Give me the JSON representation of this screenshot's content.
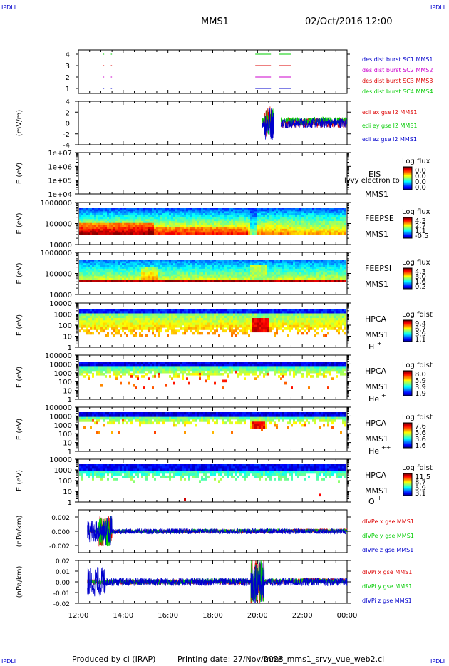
{
  "corner_tag": "IPDLI",
  "header": {
    "spacecraft": "MMS1",
    "date": "02/Oct/2016 12:00"
  },
  "footer": {
    "produced_by": "Produced by cl (IRAP)",
    "printing_date": "Printing date: 27/Nov/2023",
    "script_name": "mms_mms1_srvy_vue_web2.cl"
  },
  "time_axis": {
    "start": "12:00",
    "end": "00:00",
    "ticks": [
      "12:00",
      "14:00",
      "16:00",
      "18:00",
      "20:00",
      "22:00",
      "00:00"
    ]
  },
  "chart_data": [
    {
      "id": "burst",
      "type": "scatter",
      "yticks": [
        "4",
        "3",
        "2",
        "1"
      ],
      "ylim": [
        0.5,
        4.5
      ],
      "series": [
        {
          "name": "des dist burst SC1 MMS1",
          "color": "#0000cc"
        },
        {
          "name": "des dist burst SC2 MMS2",
          "color": "#cc00cc"
        },
        {
          "name": "des dist burst SC3 MMS3",
          "color": "#dd0000"
        },
        {
          "name": "des dist burst SC4 MMS4",
          "color": "#00cc00"
        }
      ],
      "burst_intervals_hours": [
        [
          13.1,
          13.15
        ],
        [
          13.45,
          13.5
        ],
        [
          19.9,
          20.6
        ],
        [
          20.95,
          21.5
        ]
      ]
    },
    {
      "id": "efield",
      "type": "line",
      "ylabel": "(mV/m)",
      "yticks": [
        "4",
        "2",
        "0",
        "-2",
        "-4"
      ],
      "ylim": [
        -4,
        4
      ],
      "series": [
        {
          "name": "edi ex gse l2 MMS1",
          "color": "#dd0000"
        },
        {
          "name": "edi ey gse l2 MMS1",
          "color": "#00cc00"
        },
        {
          "name": "edi ez gse l2 MMS1",
          "color": "#0000cc"
        }
      ],
      "data_range_hours": [
        20.2,
        24.0
      ]
    },
    {
      "id": "eis",
      "type": "heatmap",
      "ylabel": "E (eV)",
      "yticks": [
        "1e+07",
        "1e+06",
        "1e+05",
        "1e+04"
      ],
      "instrument": "EIS",
      "spacecraft": "MMS1",
      "overlay_text": "lvvy electron to",
      "colorbar": {
        "title": "Log flux",
        "ticks": [
          "0.0",
          "0.0",
          "0.0",
          "0.0"
        ]
      }
    },
    {
      "id": "feepse",
      "type": "heatmap",
      "ylabel": "E (eV)",
      "yticks": [
        "1000000",
        "100000",
        "10000"
      ],
      "instrument": "FEEPSE",
      "spacecraft": "MMS1",
      "colorbar": {
        "title": "Log flux",
        "ticks": [
          "4.3",
          "2.7",
          "1.1",
          "-0.5"
        ]
      }
    },
    {
      "id": "feepsi",
      "type": "heatmap",
      "ylabel": "E (eV)",
      "yticks": [
        "1000000",
        "100000",
        "10000"
      ],
      "instrument": "FEEPSI",
      "spacecraft": "MMS1",
      "colorbar": {
        "title": "Log flux",
        "ticks": [
          "4.3",
          "3.0",
          "1.6",
          "0.2"
        ]
      }
    },
    {
      "id": "hpca_h",
      "type": "heatmap",
      "ylabel": "E (eV)",
      "yticks": [
        "10000",
        "1000",
        "100",
        "10",
        "1"
      ],
      "instrument": "HPCA",
      "spacecraft": "MMS1",
      "species": "H",
      "charge": "+",
      "colorbar": {
        "title": "Log fdist",
        "ticks": [
          "9.4",
          "6.7",
          "3.9",
          "1.1"
        ]
      }
    },
    {
      "id": "hpca_he",
      "type": "heatmap",
      "ylabel": "E (eV)",
      "yticks": [
        "100000",
        "10000",
        "1000",
        "100",
        "10",
        "1"
      ],
      "instrument": "HPCA",
      "spacecraft": "MMS1",
      "species": "He",
      "charge": "+",
      "colorbar": {
        "title": "Log fdist",
        "ticks": [
          "8.0",
          "5.9",
          "3.9",
          "1.9"
        ]
      }
    },
    {
      "id": "hpca_hepp",
      "type": "heatmap",
      "ylabel": "E (eV)",
      "yticks": [
        "100000",
        "10000",
        "1000",
        "100",
        "10",
        "1"
      ],
      "instrument": "HPCA",
      "spacecraft": "MMS1",
      "species": "He",
      "charge": "++",
      "colorbar": {
        "title": "Log fdist",
        "ticks": [
          "7.6",
          "5.6",
          "3.6",
          "1.6"
        ]
      }
    },
    {
      "id": "hpca_o",
      "type": "heatmap",
      "ylabel": "E (eV)",
      "yticks": [
        "10000",
        "1000",
        "100",
        "10",
        "1"
      ],
      "instrument": "HPCA",
      "spacecraft": "MMS1",
      "species": "O",
      "charge": "+",
      "colorbar": {
        "title": "Log fdist",
        "ticks": [
          "11.5",
          "8.7",
          "5.9",
          "3.1"
        ]
      }
    },
    {
      "id": "divpe",
      "type": "line",
      "ylabel": "(nPa/km)",
      "yticks": [
        "0.002",
        "0.000",
        "-0.002"
      ],
      "ylim": [
        -0.003,
        0.003
      ],
      "series": [
        {
          "name": "dIVPe x gse MMS1",
          "color": "#dd0000"
        },
        {
          "name": "dIVPe y gse MMS1",
          "color": "#00cc00"
        },
        {
          "name": "dIVPe z gse MMS1",
          "color": "#0000cc"
        }
      ],
      "data_range_hours": [
        12.4,
        24.0
      ]
    },
    {
      "id": "divpi",
      "type": "line",
      "ylabel": "(nPa/km)",
      "yticks": [
        "0.02",
        "0.01",
        "0.00",
        "-0.01",
        "-0.02"
      ],
      "ylim": [
        -0.02,
        0.02
      ],
      "series": [
        {
          "name": "dIVPi x gse MMS1",
          "color": "#dd0000"
        },
        {
          "name": "dIVPi y gse MMS1",
          "color": "#00cc00"
        },
        {
          "name": "dIVPi z gse MMS1",
          "color": "#0000cc"
        }
      ],
      "data_range_hours": [
        12.4,
        24.0
      ]
    }
  ]
}
